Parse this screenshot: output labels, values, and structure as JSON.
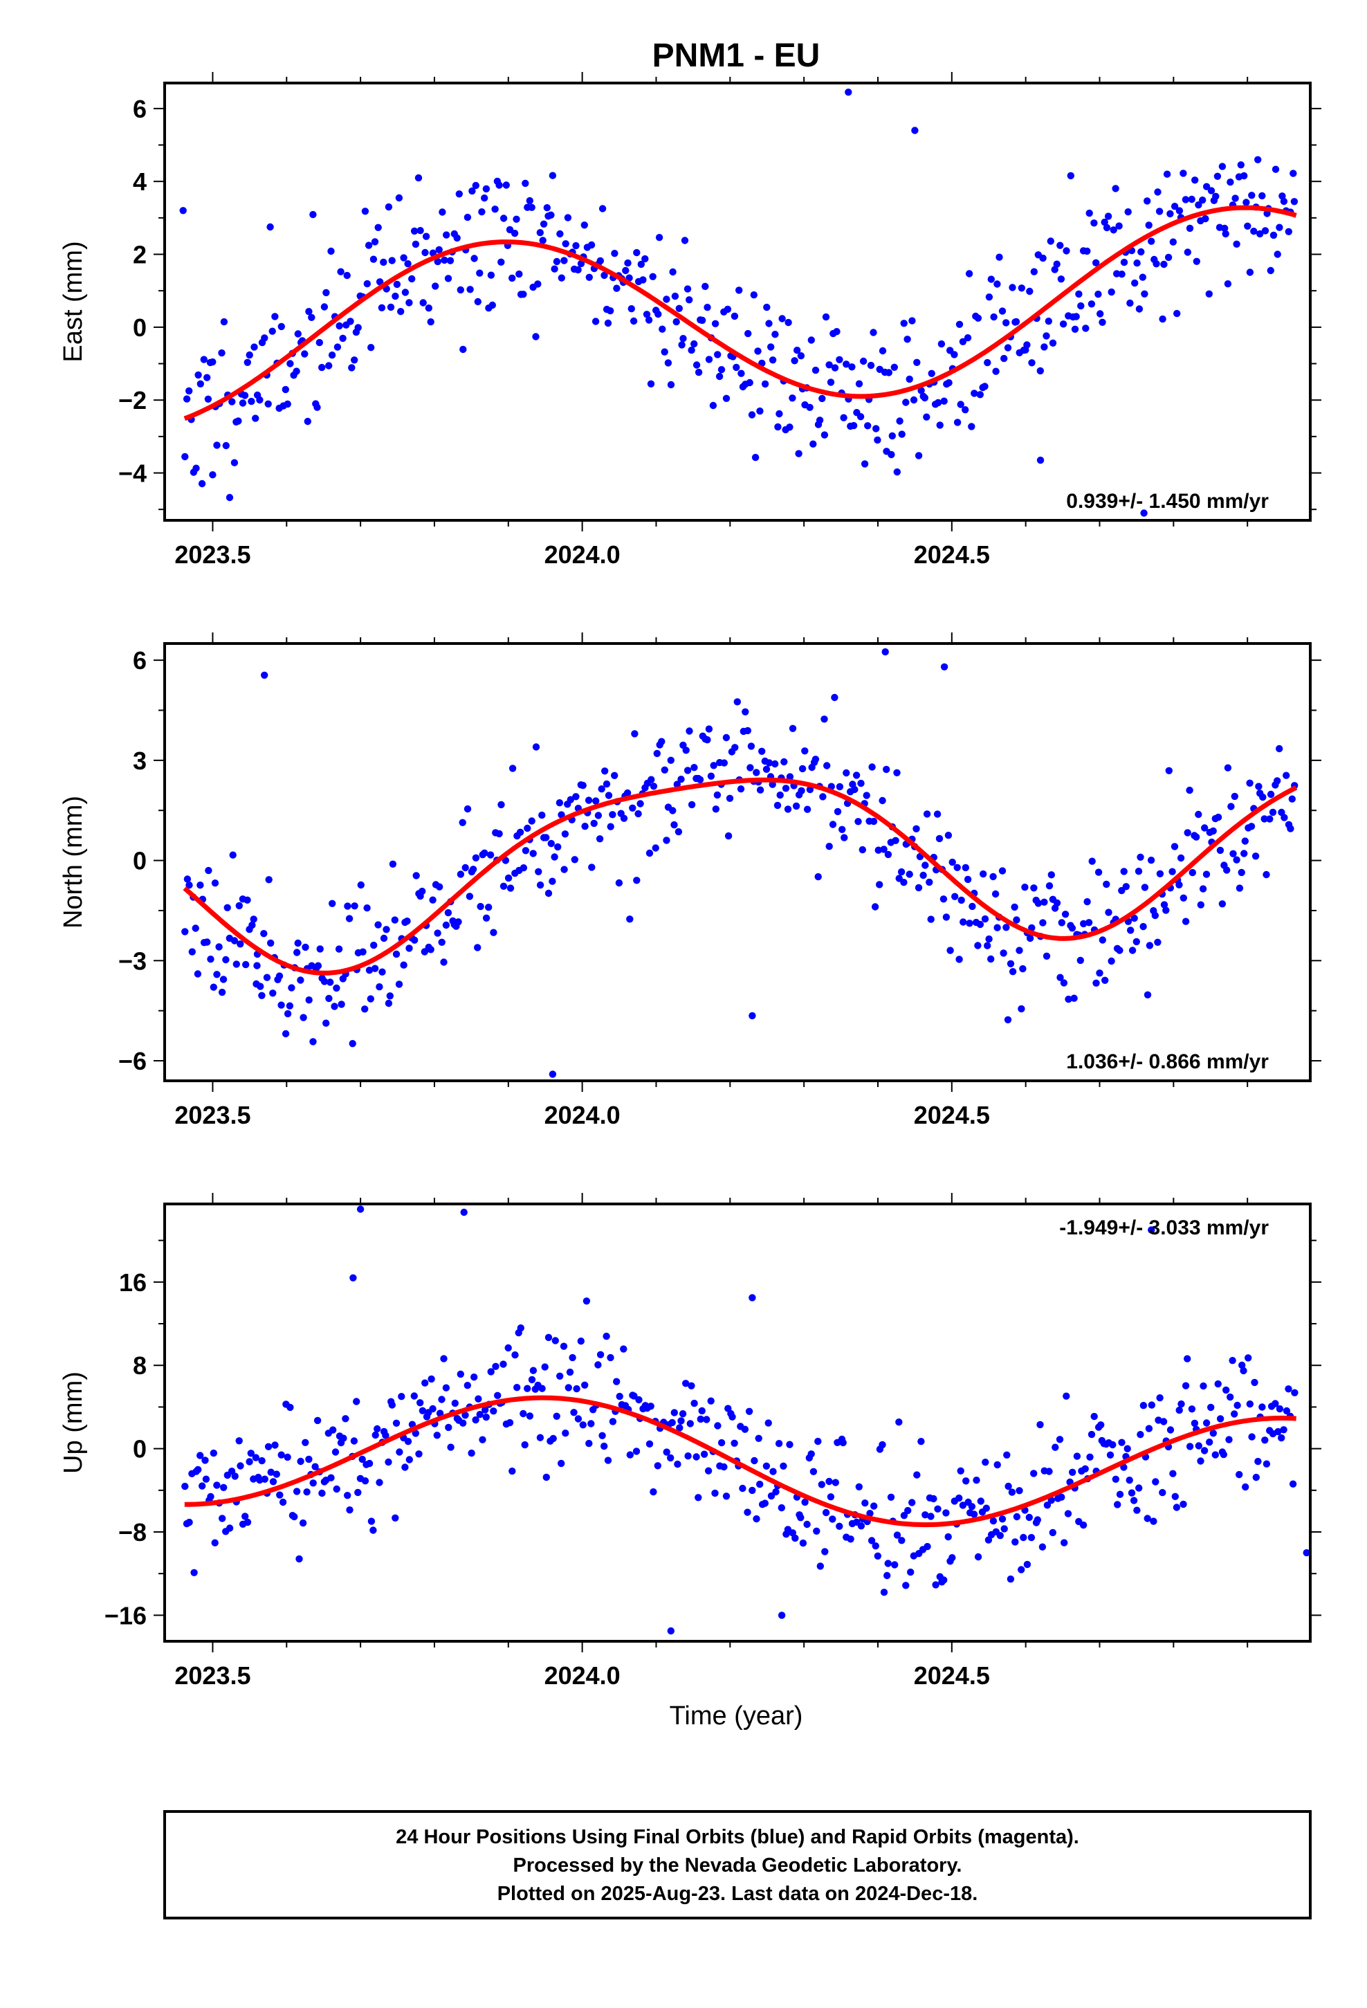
{
  "title": "PNM1 - EU",
  "colors": {
    "final_orbits": "#0000ff",
    "rapid_orbits": "#ff00ff",
    "model": "#ff0000",
    "frame": "#000000"
  },
  "chart_data": [
    {
      "type": "scatter",
      "ylabel": "East (mm)",
      "xlabel": "",
      "xlim": [
        2023.435,
        2024.985
      ],
      "ylim": [
        -5.3,
        6.7
      ],
      "yticks": [
        -4,
        -2,
        0,
        2,
        4,
        6
      ],
      "ytick_labels": [
        "−4",
        "−2",
        "0",
        "2",
        "4",
        "6"
      ],
      "xticks": [
        2023.5,
        2024.0,
        2024.5
      ],
      "xtick_labels": [
        "2023.5",
        "2024.0",
        "2024.5"
      ],
      "rate_label": "0.939+/- 1.450 mm/yr",
      "rate_position": "bottom-right",
      "model": {
        "name": "",
        "offset": 0.28,
        "rate": 0.939,
        "amp": 2.35,
        "phase": 2.28,
        "amp2": 0.0,
        "phase2": 0.0,
        "ref": 2024.2
      },
      "series": [
        {
          "name": "",
          "seed": 11,
          "noise": 1.1
        }
      ],
      "outliers": [
        {
          "x": 2024.36,
          "y": 6.45
        },
        {
          "x": 2023.46,
          "y": 3.2
        },
        {
          "x": 2023.5,
          "y": -4.05
        },
        {
          "x": 2024.76,
          "y": -5.1
        },
        {
          "x": 2024.45,
          "y": 5.4
        },
        {
          "x": 2024.62,
          "y": -3.65
        }
      ]
    },
    {
      "type": "scatter",
      "ylabel": "North (mm)",
      "xlabel": "",
      "xlim": [
        2023.435,
        2024.985
      ],
      "ylim": [
        -6.6,
        6.5
      ],
      "yticks": [
        -6,
        -3,
        0,
        3,
        6
      ],
      "ytick_labels": [
        "−6",
        "−3",
        "0",
        "3",
        "6"
      ],
      "xticks": [
        2023.5,
        2024.0,
        2024.5
      ],
      "xtick_labels": [
        "2023.5",
        "2024.0",
        "2024.5"
      ],
      "rate_label": "1.036+/- 0.866 mm/yr",
      "rate_position": "bottom-right",
      "model": {
        "name": "",
        "offset": 0.28,
        "rate": 1.036,
        "amp": 2.55,
        "phase": 0.52,
        "amp2": 0.55,
        "phase2": 2.9,
        "ref": 2024.2
      },
      "series": [
        {
          "name": "",
          "seed": 23,
          "noise": 1.0
        }
      ],
      "outliers": [
        {
          "x": 2023.96,
          "y": -6.4
        },
        {
          "x": 2024.41,
          "y": 6.25
        },
        {
          "x": 2023.56,
          "y": -3.15
        },
        {
          "x": 2024.23,
          "y": -4.65
        },
        {
          "x": 2023.57,
          "y": 5.55
        },
        {
          "x": 2024.49,
          "y": 5.8
        }
      ]
    },
    {
      "type": "scatter",
      "ylabel": "Up (mm)",
      "xlabel": "Time (year)",
      "xlim": [
        2023.435,
        2024.985
      ],
      "ylim": [
        -18.5,
        23.5
      ],
      "yticks": [
        -16,
        -8,
        0,
        8,
        16
      ],
      "ytick_labels": [
        "−16",
        "−8",
        "0",
        "8",
        "16"
      ],
      "xticks": [
        2023.5,
        2024.0,
        2024.5
      ],
      "xtick_labels": [
        "2023.5",
        "2024.0",
        "2024.5"
      ],
      "rate_label": "-1.949+/- 3.033 mm/yr",
      "rate_position": "top-right",
      "model": {
        "name": "",
        "offset": -1.2,
        "rate": -1.949,
        "amp": 5.6,
        "phase": 1.85,
        "amp2": 0.0,
        "phase2": 0.0,
        "ref": 2024.2
      },
      "series": [
        {
          "name": "",
          "seed": 37,
          "noise": 3.2
        }
      ],
      "outliers": [
        {
          "x": 2023.7,
          "y": 23.0
        },
        {
          "x": 2023.84,
          "y": 22.7
        },
        {
          "x": 2023.69,
          "y": 16.4
        },
        {
          "x": 2024.23,
          "y": 14.5
        },
        {
          "x": 2024.12,
          "y": -17.5
        },
        {
          "x": 2024.77,
          "y": 21.0
        },
        {
          "x": 2024.27,
          "y": -16.0
        },
        {
          "x": 2024.98,
          "y": -10.0
        }
      ]
    }
  ],
  "footer": {
    "line1": "24 Hour Positions Using Final Orbits (blue) and Rapid Orbits (magenta).",
    "line2": "Processed by the Nevada Geodetic Laboratory.",
    "line3": "Plotted on 2025-Aug-23. Last data on 2024-Dec-18."
  }
}
